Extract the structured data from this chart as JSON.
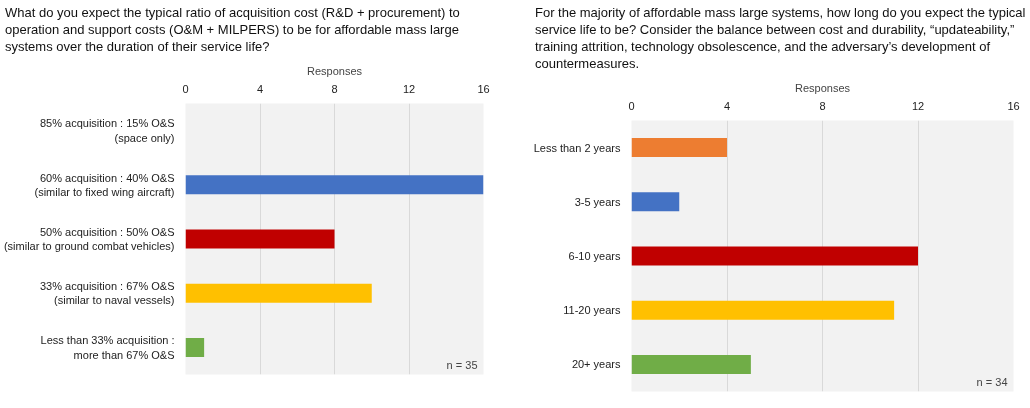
{
  "chart_data": [
    {
      "type": "bar",
      "orientation": "horizontal",
      "title": "What do you expect the typical ratio of acquisition cost (R&D + procurement) to operation and support costs (O&M + MILPERS) to be for affordable mass large systems over the duration of their service life?",
      "xlabel": "Responses",
      "categories": [
        "85% acquisition : 15% O&S (space only)",
        "60% acquisition : 40% O&S (similar to fixed wing aircraft)",
        "50% acquisition : 50% O&S (similar to ground combat vehicles)",
        "33% acquisition : 67% O&S (similar to naval vessels)",
        "Less than 33% acquisition : more than 67% O&S"
      ],
      "values": [
        0,
        16,
        8,
        10,
        1
      ],
      "colors": [
        "#ed7d31",
        "#4472c4",
        "#c00000",
        "#ffc000",
        "#70ad47"
      ],
      "xlim": [
        0,
        16
      ],
      "xticks": [
        0,
        4,
        8,
        12,
        16
      ],
      "grid": "x",
      "annotations": [
        "n = 35"
      ]
    },
    {
      "type": "bar",
      "orientation": "horizontal",
      "title": "For the majority of affordable mass large systems, how long do you expect the typical service life to be? Consider the balance between cost and durability, “updateability,” training attrition, technology obsolescence, and the adversary’s development of countermeasures.",
      "xlabel": "Responses",
      "categories": [
        "Less than 2 years",
        "3-5 years",
        "6-10 years",
        "11-20 years",
        "20+ years"
      ],
      "values": [
        4,
        2,
        12,
        11,
        5
      ],
      "colors": [
        "#ed7d31",
        "#4472c4",
        "#c00000",
        "#ffc000",
        "#70ad47"
      ],
      "xlim": [
        0,
        16
      ],
      "xticks": [
        0,
        4,
        8,
        12,
        16
      ],
      "grid": "x",
      "annotations": [
        "n = 34"
      ]
    }
  ]
}
